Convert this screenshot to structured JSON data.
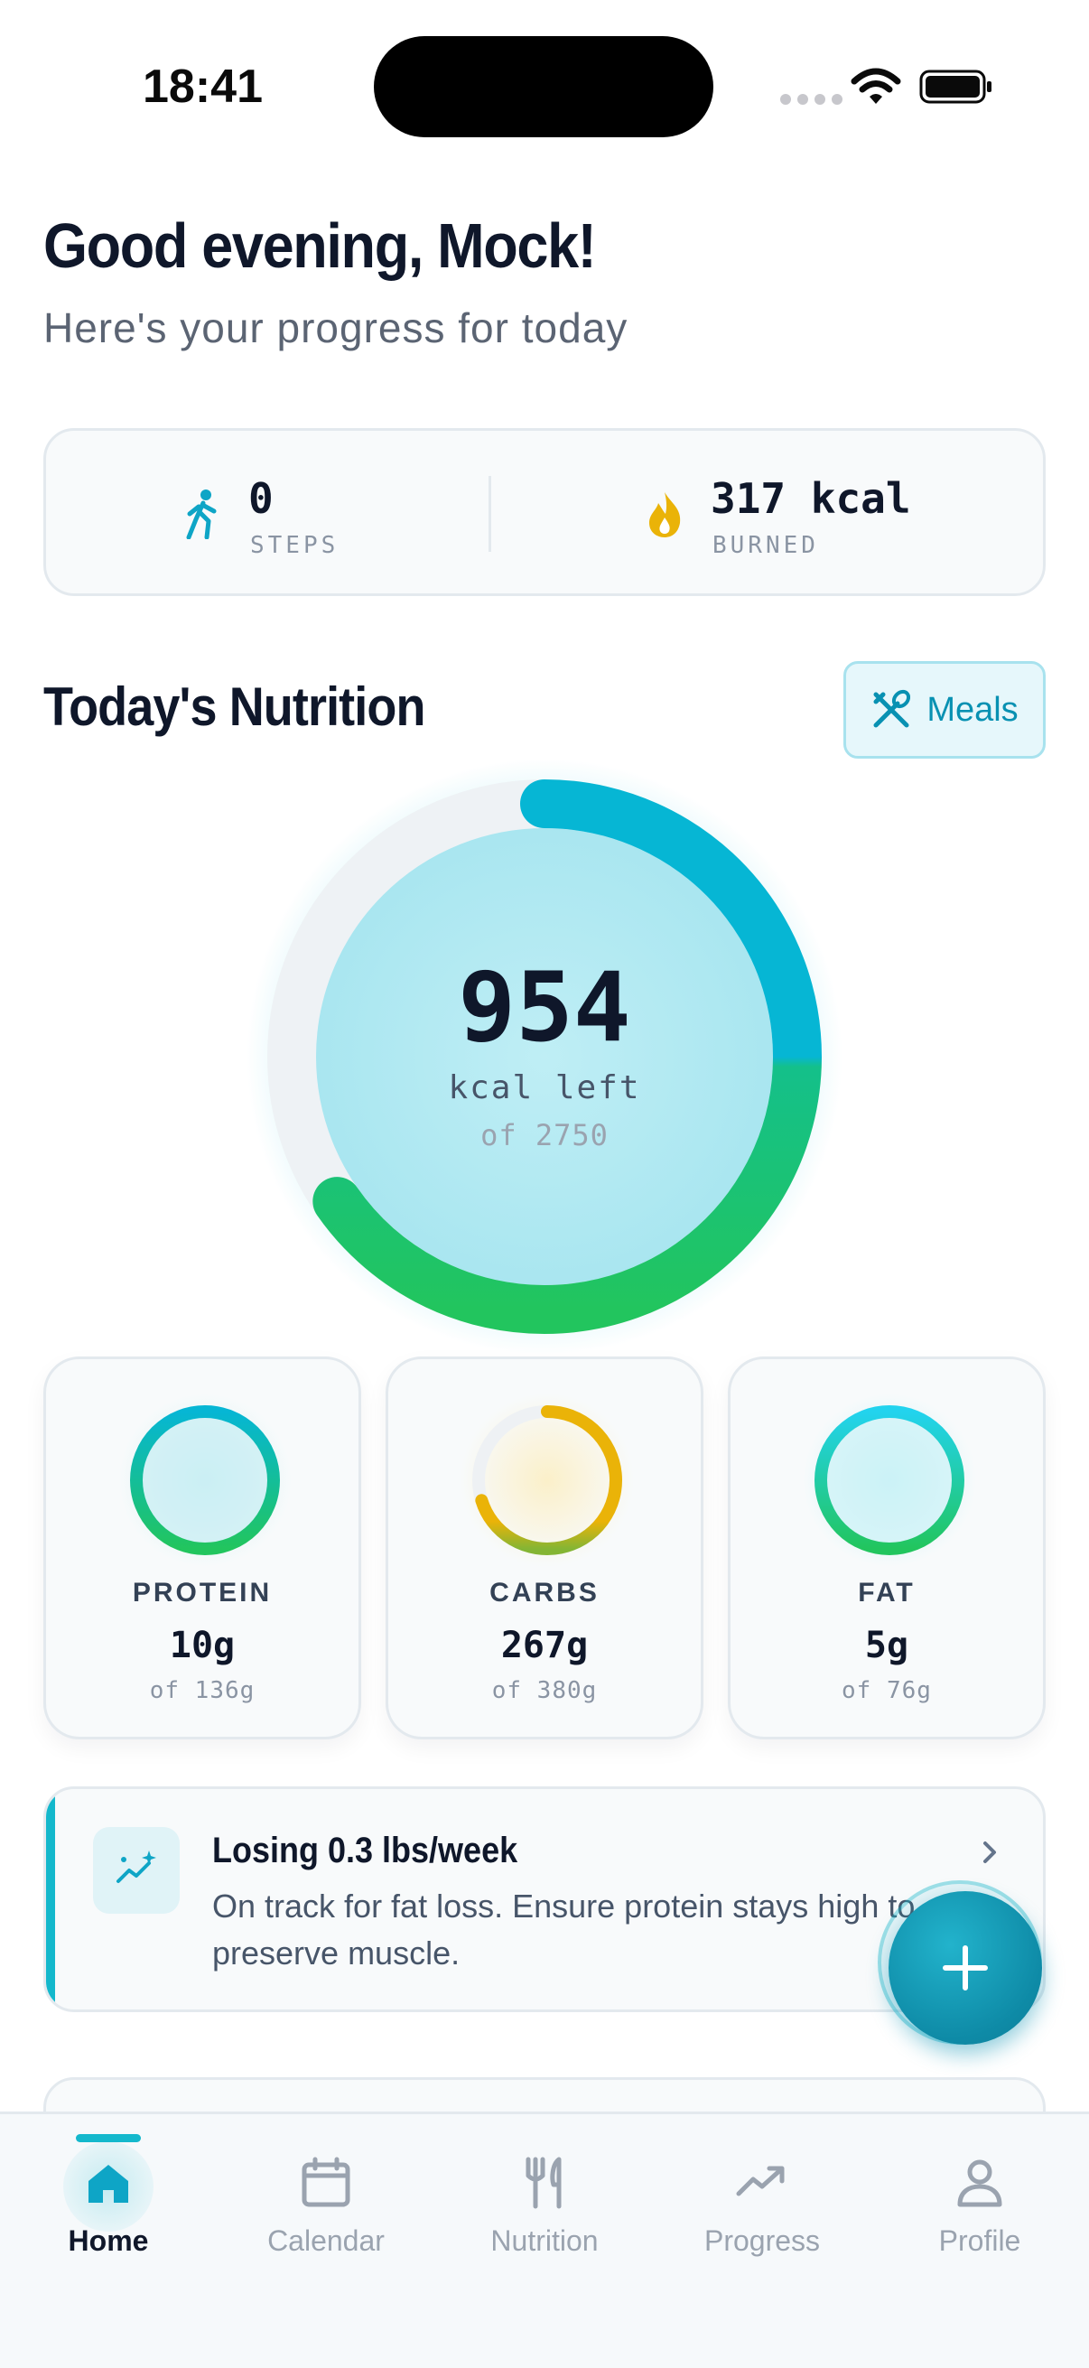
{
  "status_bar": {
    "time": "18:41"
  },
  "greeting": {
    "title": "Good evening, Mock!",
    "subtitle": "Here's your progress for today"
  },
  "stats": {
    "steps": {
      "value": "0",
      "label": "STEPS",
      "icon": "walking-icon"
    },
    "burned": {
      "value": "317 kcal",
      "label": "BURNED",
      "icon": "flame-icon"
    }
  },
  "nutrition": {
    "title": "Today's Nutrition",
    "meals_button": "Meals",
    "calories": {
      "left": "954",
      "left_label": "kcal left",
      "goal_text": "of 2750",
      "consumed": 1796,
      "goal": 2750
    },
    "macros": [
      {
        "name": "PROTEIN",
        "value": "10g",
        "goal_text": "of 136g",
        "consumed": 10,
        "goal": 136
      },
      {
        "name": "CARBS",
        "value": "267g",
        "goal_text": "of 380g",
        "consumed": 267,
        "goal": 380
      },
      {
        "name": "FAT",
        "value": "5g",
        "goal_text": "of 76g",
        "consumed": 5,
        "goal": 76
      }
    ]
  },
  "insight": {
    "icon": "trend-sparkle-icon",
    "title": "Losing 0.3 lbs/week",
    "body": "On track for fat loss. Ensure protein stays high to preserve muscle."
  },
  "fab": {
    "icon": "plus-icon"
  },
  "bottom_nav": {
    "items": [
      {
        "label": "Home",
        "icon": "home-icon",
        "active": true
      },
      {
        "label": "Calendar",
        "icon": "calendar-icon",
        "active": false
      },
      {
        "label": "Nutrition",
        "icon": "fork-knife-icon",
        "active": false
      },
      {
        "label": "Progress",
        "icon": "trend-up-icon",
        "active": false
      },
      {
        "label": "Profile",
        "icon": "person-icon",
        "active": false
      }
    ]
  },
  "colors": {
    "accent": "#14b8cc",
    "cyan": "#06b6d4",
    "green": "#22c55e",
    "amber": "#eab308",
    "text_dark": "#0f172a",
    "text_muted": "#9aa3af"
  }
}
